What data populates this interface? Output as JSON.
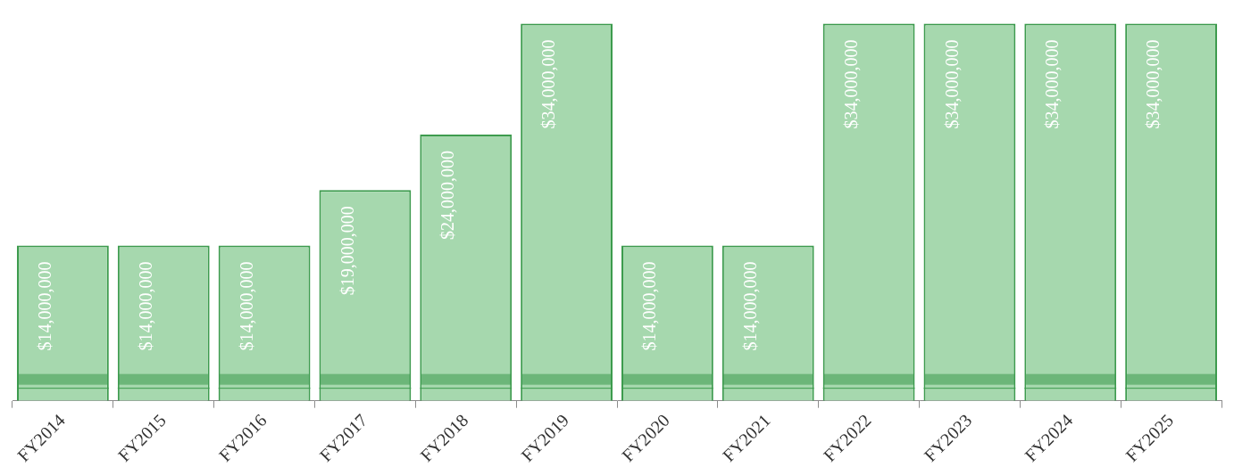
{
  "chart_data": {
    "type": "bar",
    "categories": [
      "FY2014",
      "FY2015",
      "FY2016",
      "FY2017",
      "FY2018",
      "FY2019",
      "FY2020",
      "FY2021",
      "FY2022",
      "FY2023",
      "FY2024",
      "FY2025"
    ],
    "values": [
      14000000,
      14000000,
      14000000,
      19000000,
      24000000,
      34000000,
      14000000,
      14000000,
      34000000,
      34000000,
      34000000,
      34000000
    ],
    "value_labels": [
      "$14,000,000",
      "$14,000,000",
      "$14,000,000",
      "$19,000,000",
      "$24,000,000",
      "$34,000,000",
      "$14,000,000",
      "$14,000,000",
      "$34,000,000",
      "$34,000,000",
      "$34,000,000",
      "$34,000,000"
    ],
    "color": "#a6d8ae",
    "data_labels": true,
    "tick_labels": "x",
    "grid": false
  }
}
